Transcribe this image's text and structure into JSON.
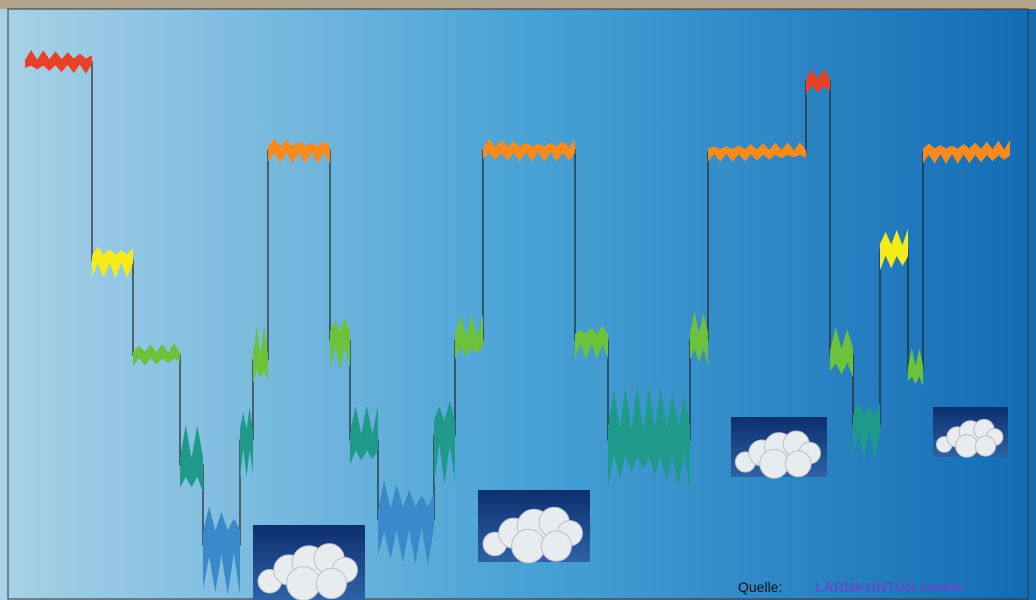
{
  "source": {
    "label": "Quelle:",
    "name": "LÄRMKONTOR GmbH"
  }
}
